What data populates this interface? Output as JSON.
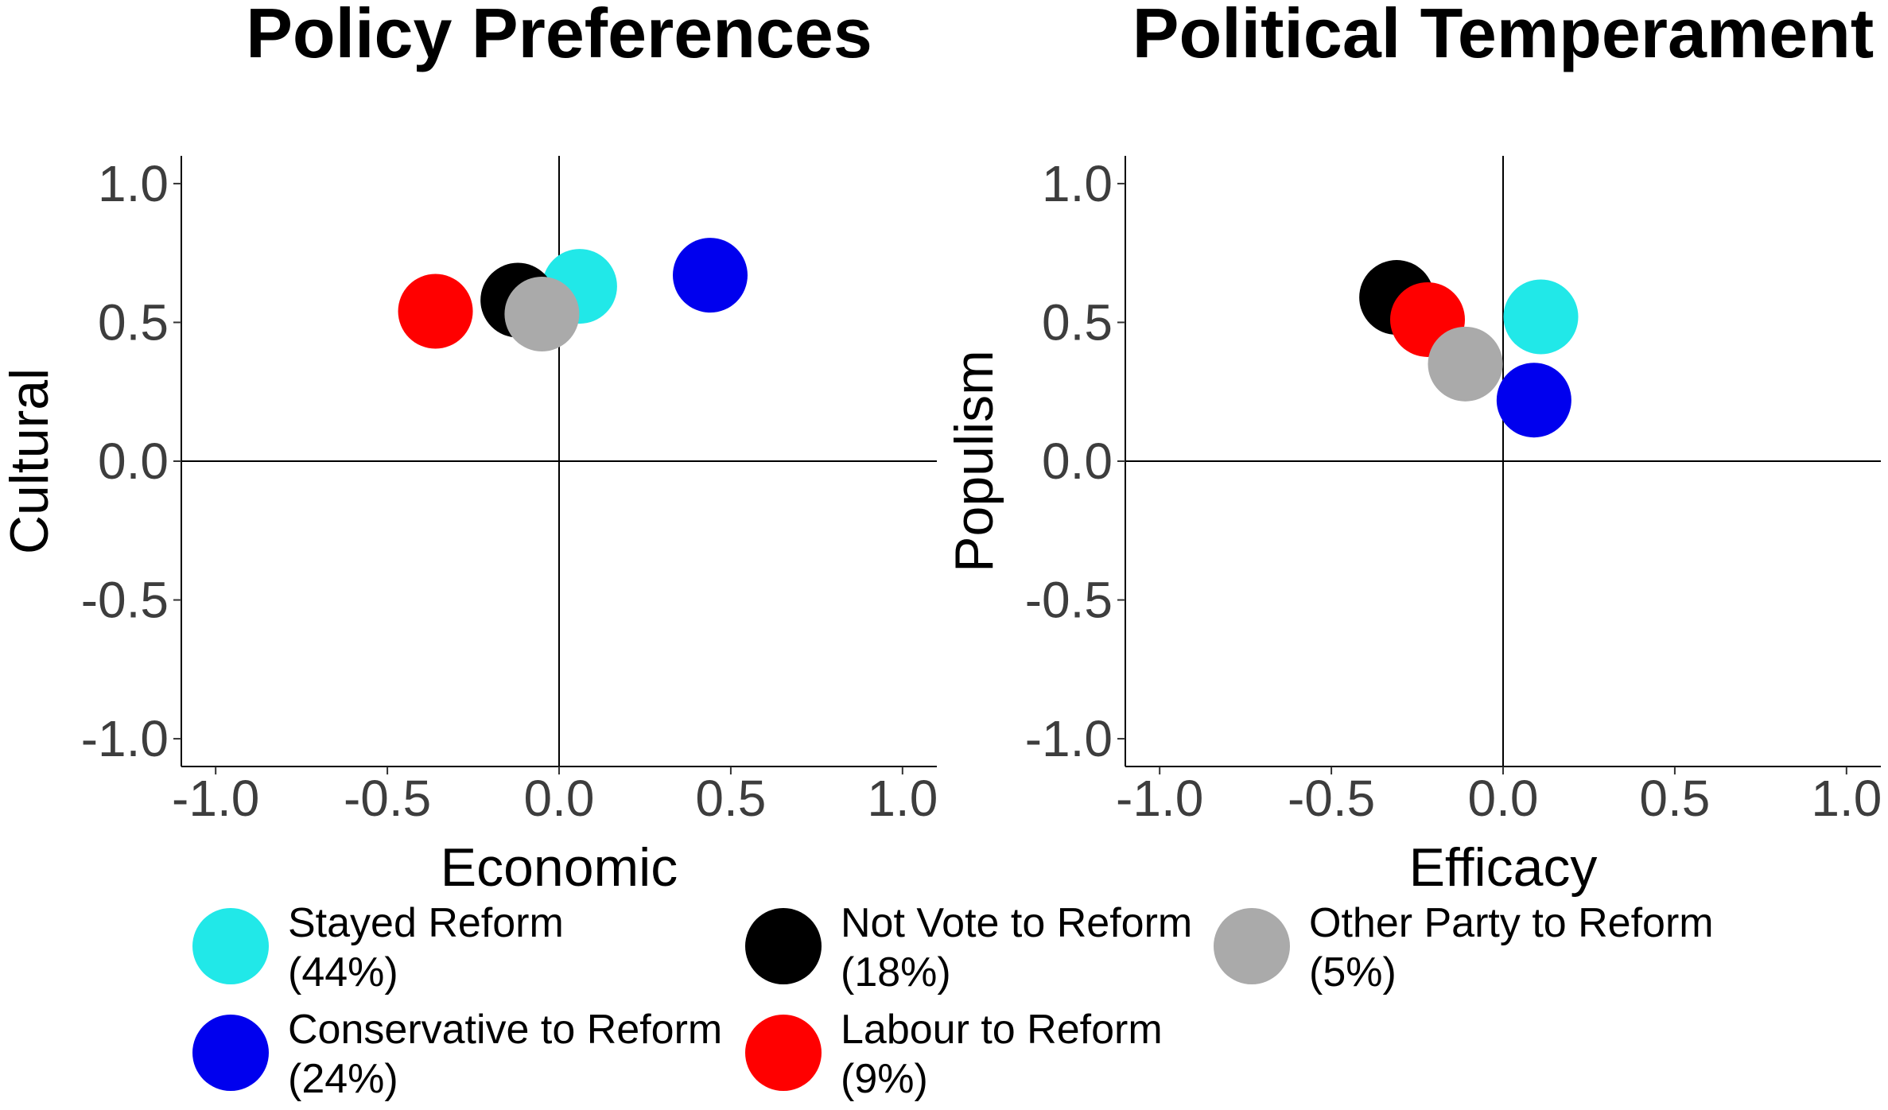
{
  "chart_data": [
    {
      "type": "scatter",
      "title": "Policy Preferences",
      "xlabel": "Economic",
      "ylabel": "Cultural",
      "xlim": [
        -1.1,
        1.1
      ],
      "ylim": [
        -1.1,
        1.1
      ],
      "xticks": [
        -1.0,
        -0.5,
        0.0,
        0.5,
        1.0
      ],
      "yticks": [
        -1.0,
        -0.5,
        0.0,
        0.5,
        1.0
      ],
      "xtick_labels": [
        "-1.0",
        "-0.5",
        "0.0",
        "0.5",
        "1.0"
      ],
      "ytick_labels": [
        "-1.0",
        "-0.5",
        "0.0",
        "0.5",
        "1.0"
      ],
      "reference_lines": {
        "x": 0,
        "y": 0
      },
      "points": [
        {
          "group": "Stayed Reform",
          "x": 0.06,
          "y": 0.63
        },
        {
          "group": "Conservative to Reform",
          "x": 0.44,
          "y": 0.67
        },
        {
          "group": "Not Vote to Reform",
          "x": -0.12,
          "y": 0.58
        },
        {
          "group": "Labour to Reform",
          "x": -0.36,
          "y": 0.54
        },
        {
          "group": "Other Party to Reform",
          "x": -0.05,
          "y": 0.53
        }
      ]
    },
    {
      "type": "scatter",
      "title": "Political Temperament",
      "xlabel": "Efficacy",
      "ylabel": "Populism",
      "xlim": [
        -1.1,
        1.1
      ],
      "ylim": [
        -1.1,
        1.1
      ],
      "xticks": [
        -1.0,
        -0.5,
        0.0,
        0.5,
        1.0
      ],
      "yticks": [
        -1.0,
        -0.5,
        0.0,
        0.5,
        1.0
      ],
      "xtick_labels": [
        "-1.0",
        "-0.5",
        "0.0",
        "0.5",
        "1.0"
      ],
      "ytick_labels": [
        "-1.0",
        "-0.5",
        "0.0",
        "0.5",
        "1.0"
      ],
      "reference_lines": {
        "x": 0,
        "y": 0
      },
      "points": [
        {
          "group": "Stayed Reform",
          "x": 0.11,
          "y": 0.52
        },
        {
          "group": "Conservative to Reform",
          "x": 0.09,
          "y": 0.22
        },
        {
          "group": "Not Vote to Reform",
          "x": -0.31,
          "y": 0.59
        },
        {
          "group": "Labour to Reform",
          "x": -0.22,
          "y": 0.51
        },
        {
          "group": "Other Party to Reform",
          "x": -0.11,
          "y": 0.35
        }
      ]
    }
  ],
  "legend": {
    "placement": "bottom",
    "items": [
      {
        "group": "Stayed Reform",
        "label": "Stayed Reform",
        "pct": "(44%)",
        "color": "#21e8e8"
      },
      {
        "group": "Not Vote to Reform",
        "label": "Not Vote to Reform",
        "pct": "(18%)",
        "color": "#000000"
      },
      {
        "group": "Other Party to Reform",
        "label": "Other Party to Reform",
        "pct": "(5%)",
        "color": "#aaaaaa"
      },
      {
        "group": "Conservative to Reform",
        "label": "Conservative to Reform",
        "pct": "(24%)",
        "color": "#0000ee"
      },
      {
        "group": "Labour to Reform",
        "label": "Labour to Reform",
        "pct": "(9%)",
        "color": "#ff0000"
      }
    ]
  }
}
